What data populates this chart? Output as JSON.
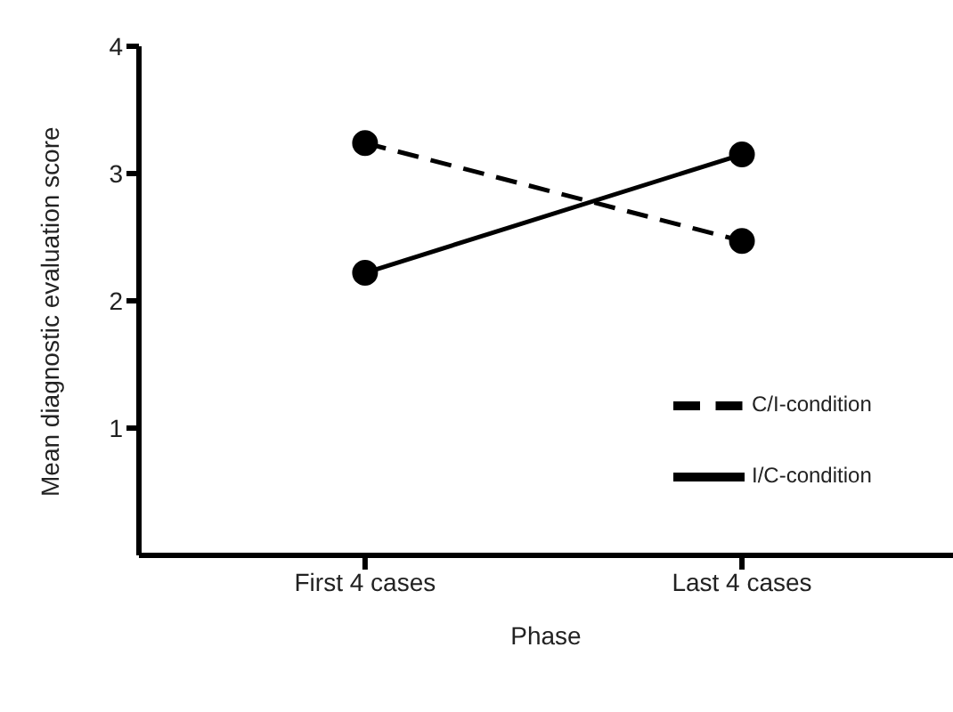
{
  "chart_data": {
    "type": "line",
    "xlabel": "Phase",
    "ylabel": "Mean diagnostic evaluation score",
    "categories": [
      "First 4 cases",
      "Last 4 cases"
    ],
    "series": [
      {
        "name": "C/I-condition",
        "color": "#000000",
        "line_style": "dashed",
        "values": [
          3.24,
          2.47
        ]
      },
      {
        "name": "I/C-condition",
        "color": "#000000",
        "line_style": "solid",
        "values": [
          2.22,
          3.15
        ]
      }
    ],
    "ylim": [
      0,
      4
    ],
    "yticks": [
      1,
      2,
      3,
      4
    ],
    "grid": false,
    "legend": "right",
    "marker": "circle"
  }
}
